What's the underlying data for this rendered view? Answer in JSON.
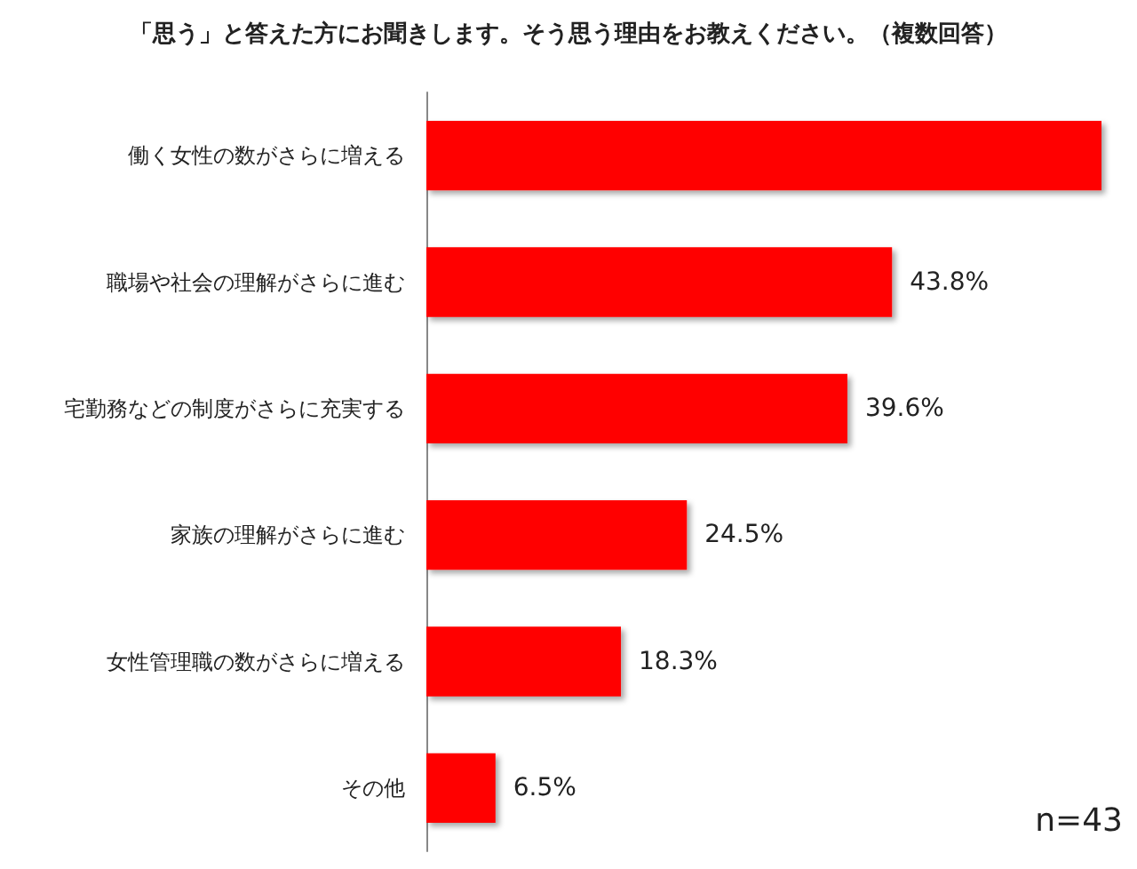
{
  "chart_data": {
    "type": "bar",
    "orientation": "horizontal",
    "title": "「思う」と答えた方にお聞きします。そう思う理由をお教えください。（複数回答）",
    "categories": [
      "働く女性の数がさらに増える",
      "職場や社会の理解がさらに進む",
      "宅勤務などの制度がさらに充実する",
      "家族の理解がさらに進む",
      "女性管理職の数がさらに増える",
      "その他"
    ],
    "values": [
      63.5,
      43.8,
      39.6,
      24.5,
      18.3,
      6.5
    ],
    "value_labels": [
      null,
      "43.8%",
      "39.6%",
      "24.5%",
      "18.3%",
      "6.5%"
    ],
    "color": "#ff0000",
    "grid": false,
    "annotations": [
      "n=43"
    ]
  }
}
